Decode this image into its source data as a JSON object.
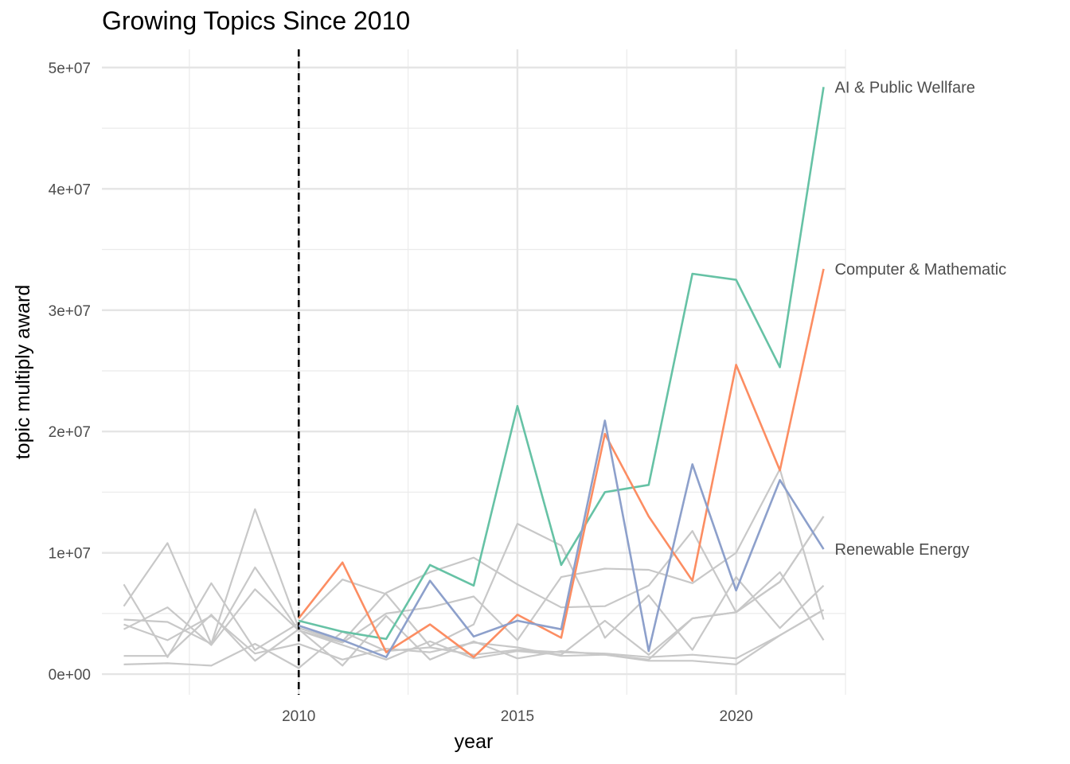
{
  "chart_data": {
    "type": "line",
    "title": "Growing Topics Since 2010",
    "xlabel": "year",
    "ylabel": "topic multiply award",
    "xlim": [
      2005.5,
      2022.5
    ],
    "ylim": [
      -1700000,
      51500000
    ],
    "x_ticks": [
      2010,
      2015,
      2020
    ],
    "x_tick_labels": [
      "2010",
      "2015",
      "2020"
    ],
    "y_ticks": [
      0,
      10000000,
      20000000,
      30000000,
      40000000,
      50000000
    ],
    "y_tick_labels": [
      "0e+00",
      "1e+07",
      "2e+07",
      "3e+07",
      "4e+07",
      "5e+07"
    ],
    "grid": true,
    "legend": "none",
    "reference_line": {
      "x": 2010,
      "style": "dashed",
      "color": "#000000"
    },
    "highlighted_series": [
      {
        "name": "AI & Public Wellfare",
        "color": "#66c2a5",
        "x": [
          2010,
          2011,
          2012,
          2013,
          2014,
          2015,
          2016,
          2017,
          2018,
          2019,
          2020,
          2021,
          2022
        ],
        "y": [
          4400000,
          3500000,
          2900000,
          9000000,
          7300000,
          22100000,
          9000000,
          15000000,
          15600000,
          33000000,
          32500000,
          25300000,
          48400000
        ]
      },
      {
        "name": "Computer & Mathematic",
        "color": "#fc8d62",
        "x": [
          2010,
          2011,
          2012,
          2013,
          2014,
          2015,
          2016,
          2017,
          2018,
          2019,
          2020,
          2021,
          2022
        ],
        "y": [
          4600000,
          9200000,
          1800000,
          4100000,
          1400000,
          4900000,
          3000000,
          19800000,
          13000000,
          7700000,
          25500000,
          16800000,
          33400000
        ]
      },
      {
        "name": "Renewable Energy",
        "color": "#8da0cb",
        "x": [
          2010,
          2011,
          2012,
          2013,
          2014,
          2015,
          2016,
          2017,
          2018,
          2019,
          2020,
          2021,
          2022
        ],
        "y": [
          4000000,
          2800000,
          1400000,
          7700000,
          3100000,
          4400000,
          3700000,
          20900000,
          1900000,
          17300000,
          6900000,
          16000000,
          10300000
        ]
      }
    ],
    "background_series": [
      {
        "color": "#c8c8c8",
        "x": [
          2006,
          2007,
          2008,
          2009,
          2010,
          2011,
          2012,
          2013,
          2014,
          2015,
          2016,
          2017,
          2018,
          2019,
          2020,
          2021,
          2022
        ],
        "y": [
          7400000,
          1400000,
          7500000,
          2000000,
          4200000,
          7800000,
          6600000,
          2300000,
          4100000,
          12400000,
          10600000,
          3000000,
          6500000,
          2000000,
          8000000,
          3800000,
          7300000
        ]
      },
      {
        "color": "#c8c8c8",
        "x": [
          2006,
          2007,
          2008,
          2009,
          2010,
          2011,
          2012,
          2013,
          2014,
          2015,
          2016,
          2017,
          2018,
          2019,
          2020,
          2021,
          2022
        ],
        "y": [
          5600000,
          10800000,
          2500000,
          13600000,
          3800000,
          2700000,
          6700000,
          8400000,
          9600000,
          7400000,
          5500000,
          5600000,
          7300000,
          11800000,
          5100000,
          8400000,
          2800000
        ]
      },
      {
        "color": "#c8c8c8",
        "x": [
          2006,
          2007,
          2008,
          2009,
          2010,
          2011,
          2012,
          2013,
          2014,
          2015,
          2016,
          2017,
          2018,
          2019,
          2020,
          2021,
          2022
        ],
        "y": [
          4500000,
          4300000,
          2500000,
          8800000,
          3600000,
          2600000,
          5000000,
          5500000,
          6400000,
          2800000,
          8000000,
          8700000,
          8600000,
          7500000,
          10000000,
          16900000,
          4500000
        ]
      },
      {
        "color": "#c8c8c8",
        "x": [
          2006,
          2007,
          2008,
          2009,
          2010,
          2011,
          2012,
          2013,
          2014,
          2015,
          2016,
          2017,
          2018,
          2019,
          2020,
          2021,
          2022
        ],
        "y": [
          3700000,
          5500000,
          2400000,
          7000000,
          3600000,
          2400000,
          1200000,
          2700000,
          1300000,
          1900000,
          1600000,
          4400000,
          1600000,
          4600000,
          5100000,
          7600000,
          13000000
        ]
      },
      {
        "color": "#c8c8c8",
        "x": [
          2006,
          2007,
          2008,
          2009,
          2010,
          2011,
          2012,
          2013,
          2014,
          2015,
          2016,
          2017,
          2018,
          2019,
          2020,
          2021,
          2022
        ],
        "y": [
          1500000,
          1500000,
          4900000,
          1100000,
          3700000,
          700000,
          4800000,
          1200000,
          2700000,
          1300000,
          1900000,
          1600000,
          1200000,
          4600000,
          5100000,
          7600000,
          13000000
        ]
      },
      {
        "color": "#c8c8c8",
        "x": [
          2006,
          2007,
          2008,
          2009,
          2010,
          2011,
          2012,
          2013,
          2014,
          2015,
          2016,
          2017,
          2018,
          2019,
          2020,
          2021,
          2022
        ],
        "y": [
          4100000,
          2800000,
          4800000,
          1700000,
          2500000,
          1200000,
          2100000,
          1800000,
          2600000,
          2200000,
          1500000,
          1600000,
          1100000,
          1100000,
          800000,
          3200000,
          5300000
        ]
      },
      {
        "color": "#c8c8c8",
        "x": [
          2006,
          2007,
          2008,
          2009,
          2010,
          2011,
          2012,
          2013,
          2014,
          2015,
          2016,
          2017,
          2018,
          2019,
          2020,
          2021,
          2022
        ],
        "y": [
          800000,
          900000,
          700000,
          2500000,
          500000,
          3500000,
          1900000,
          2200000,
          1600000,
          2000000,
          1800000,
          1700000,
          1400000,
          1600000,
          1300000,
          3200000,
          5300000
        ]
      }
    ]
  }
}
